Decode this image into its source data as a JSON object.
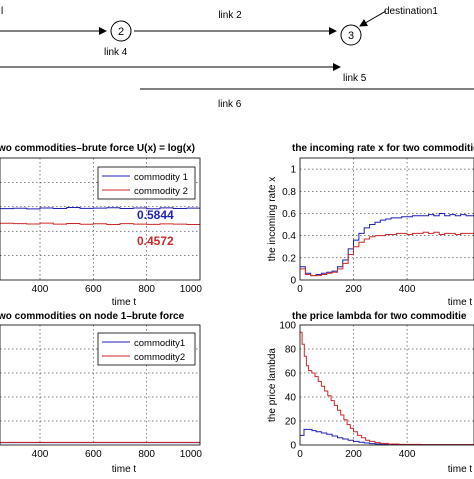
{
  "network": {
    "nodes": [
      {
        "id": "node-2",
        "label": "2"
      },
      {
        "id": "node-3",
        "label": "3"
      }
    ],
    "labels": {
      "link1": "l",
      "link2": "link 2",
      "link4": "link 4",
      "link5": "link 5",
      "link6": "link 6",
      "destination": "destination1"
    }
  },
  "chart_data": [
    {
      "id": "throughput",
      "type": "line",
      "title": "wo commodities–brute force U(x) = log(x)",
      "xlabel": "time t",
      "ylabel": "",
      "xlim": [
        250,
        1000
      ],
      "ylim": [
        0,
        1
      ],
      "x_ticks": [
        "400",
        "600",
        "800",
        "1000"
      ],
      "grid": true,
      "legend": "top-right",
      "series": [
        {
          "name": "commodity 1",
          "color": "#1f1fb4",
          "level": 0.5844,
          "points": [
            [
              250,
              0.585
            ],
            [
              300,
              0.588
            ],
            [
              350,
              0.583
            ],
            [
              400,
              0.59
            ],
            [
              450,
              0.586
            ],
            [
              500,
              0.594
            ],
            [
              550,
              0.587
            ],
            [
              600,
              0.589
            ],
            [
              650,
              0.592
            ],
            [
              700,
              0.586
            ],
            [
              750,
              0.59
            ],
            [
              800,
              0.584
            ],
            [
              850,
              0.591
            ],
            [
              900,
              0.586
            ],
            [
              950,
              0.589
            ],
            [
              1000,
              0.594
            ]
          ]
        },
        {
          "name": "commodity 2",
          "color": "#cc2a2a",
          "level": 0.4572,
          "points": [
            [
              250,
              0.465
            ],
            [
              300,
              0.462
            ],
            [
              350,
              0.459
            ],
            [
              400,
              0.466
            ],
            [
              450,
              0.458
            ],
            [
              500,
              0.463
            ],
            [
              550,
              0.457
            ],
            [
              600,
              0.461
            ],
            [
              650,
              0.455
            ],
            [
              700,
              0.462
            ],
            [
              750,
              0.458
            ],
            [
              800,
              0.456
            ],
            [
              850,
              0.46
            ],
            [
              900,
              0.458
            ],
            [
              950,
              0.455
            ],
            [
              1000,
              0.457
            ]
          ]
        }
      ],
      "annotations": [
        {
          "text": "0.5844",
          "color": "#1f1fb4"
        },
        {
          "text": "0.4572",
          "color": "#cc2a2a"
        }
      ]
    },
    {
      "id": "incoming-rate",
      "type": "line",
      "title": "the incoming rate x for two commoditie",
      "xlabel": "time t",
      "ylabel": "the incoming rate x",
      "xlim": [
        0,
        650
      ],
      "ylim": [
        0,
        1.1
      ],
      "y_ticks": [
        "0",
        "0.2",
        "0.4",
        "0.6",
        "0.8",
        "1"
      ],
      "x_ticks": [
        "0",
        "200",
        "400"
      ],
      "grid": true,
      "series": [
        {
          "name": "commodity 1",
          "color": "#1f1fb4",
          "points": [
            [
              0,
              0.12
            ],
            [
              20,
              0.06
            ],
            [
              40,
              0.04
            ],
            [
              60,
              0.05
            ],
            [
              80,
              0.06
            ],
            [
              100,
              0.07
            ],
            [
              120,
              0.08
            ],
            [
              140,
              0.12
            ],
            [
              160,
              0.18
            ],
            [
              180,
              0.28
            ],
            [
              200,
              0.36
            ],
            [
              220,
              0.42
            ],
            [
              240,
              0.47
            ],
            [
              260,
              0.5
            ],
            [
              280,
              0.52
            ],
            [
              300,
              0.54
            ],
            [
              320,
              0.55
            ],
            [
              340,
              0.56
            ],
            [
              360,
              0.56
            ],
            [
              380,
              0.57
            ],
            [
              400,
              0.57
            ],
            [
              420,
              0.58
            ],
            [
              440,
              0.58
            ],
            [
              460,
              0.58
            ],
            [
              480,
              0.59
            ],
            [
              500,
              0.58
            ],
            [
              520,
              0.6
            ],
            [
              540,
              0.58
            ],
            [
              560,
              0.59
            ],
            [
              580,
              0.58
            ],
            [
              600,
              0.59
            ],
            [
              620,
              0.58
            ],
            [
              650,
              0.58
            ]
          ]
        },
        {
          "name": "commodity 2",
          "color": "#cc2a2a",
          "points": [
            [
              0,
              0.1
            ],
            [
              20,
              0.05
            ],
            [
              40,
              0.04
            ],
            [
              60,
              0.04
            ],
            [
              80,
              0.05
            ],
            [
              100,
              0.06
            ],
            [
              120,
              0.07
            ],
            [
              140,
              0.1
            ],
            [
              160,
              0.15
            ],
            [
              180,
              0.23
            ],
            [
              200,
              0.3
            ],
            [
              220,
              0.34
            ],
            [
              240,
              0.37
            ],
            [
              260,
              0.39
            ],
            [
              280,
              0.4
            ],
            [
              300,
              0.4
            ],
            [
              320,
              0.41
            ],
            [
              340,
              0.41
            ],
            [
              360,
              0.42
            ],
            [
              380,
              0.42
            ],
            [
              400,
              0.41
            ],
            [
              420,
              0.42
            ],
            [
              440,
              0.42
            ],
            [
              460,
              0.43
            ],
            [
              480,
              0.42
            ],
            [
              500,
              0.43
            ],
            [
              520,
              0.41
            ],
            [
              540,
              0.42
            ],
            [
              560,
              0.42
            ],
            [
              580,
              0.41
            ],
            [
              600,
              0.42
            ],
            [
              620,
              0.42
            ],
            [
              650,
              0.42
            ]
          ]
        }
      ]
    },
    {
      "id": "node1",
      "type": "line",
      "title": "wo commodities on node 1–brute force",
      "xlabel": "time t",
      "ylabel": "",
      "xlim": [
        250,
        1000
      ],
      "ylim": [
        0,
        1
      ],
      "x_ticks": [
        "400",
        "600",
        "800",
        "1000"
      ],
      "grid": true,
      "legend": "top-right",
      "series": [
        {
          "name": "commodity1",
          "color": "#1f1fb4",
          "points": [
            [
              250,
              0.02
            ],
            [
              400,
              0.02
            ],
            [
              600,
              0.02
            ],
            [
              800,
              0.02
            ],
            [
              1000,
              0.02
            ]
          ]
        },
        {
          "name": "commodity2",
          "color": "#cc2a2a",
          "points": [
            [
              250,
              0.022
            ],
            [
              400,
              0.022
            ],
            [
              600,
              0.022
            ],
            [
              800,
              0.022
            ],
            [
              1000,
              0.022
            ]
          ]
        }
      ]
    },
    {
      "id": "price",
      "type": "line",
      "title": "the price lambda for two commoditie",
      "xlabel": "time t",
      "ylabel": "the price lambda",
      "xlim": [
        0,
        650
      ],
      "ylim": [
        0,
        100
      ],
      "y_ticks": [
        "0",
        "20",
        "40",
        "60",
        "80",
        "100"
      ],
      "x_ticks": [
        "0",
        "200",
        "400"
      ],
      "grid": true,
      "series": [
        {
          "name": "commodity 1",
          "color": "#1f1fb4",
          "points": [
            [
              0,
              8
            ],
            [
              15,
              13
            ],
            [
              30,
              13
            ],
            [
              45,
              12
            ],
            [
              60,
              11
            ],
            [
              80,
              10
            ],
            [
              100,
              9
            ],
            [
              120,
              7.5
            ],
            [
              140,
              6
            ],
            [
              160,
              5
            ],
            [
              180,
              4
            ],
            [
              200,
              3
            ],
            [
              220,
              2.3
            ],
            [
              240,
              1.7
            ],
            [
              260,
              1.2
            ],
            [
              280,
              0.8
            ],
            [
              300,
              0.6
            ],
            [
              340,
              0.4
            ],
            [
              400,
              0.3
            ],
            [
              500,
              0.3
            ],
            [
              650,
              0.3
            ]
          ]
        },
        {
          "name": "commodity 2",
          "color": "#cc2a2a",
          "points": [
            [
              0,
              94
            ],
            [
              8,
              84
            ],
            [
              16,
              74
            ],
            [
              24,
              66
            ],
            [
              32,
              62
            ],
            [
              44,
              60
            ],
            [
              56,
              57
            ],
            [
              68,
              53
            ],
            [
              80,
              49
            ],
            [
              92,
              45
            ],
            [
              104,
              41
            ],
            [
              116,
              37
            ],
            [
              128,
              33
            ],
            [
              140,
              29
            ],
            [
              152,
              25
            ],
            [
              164,
              21
            ],
            [
              176,
              17
            ],
            [
              188,
              14
            ],
            [
              200,
              11
            ],
            [
              215,
              8
            ],
            [
              230,
              6
            ],
            [
              245,
              4
            ],
            [
              260,
              3
            ],
            [
              280,
              2
            ],
            [
              300,
              1.3
            ],
            [
              330,
              0.8
            ],
            [
              370,
              0.5
            ],
            [
              450,
              0.3
            ],
            [
              650,
              0.3
            ]
          ]
        }
      ]
    }
  ]
}
